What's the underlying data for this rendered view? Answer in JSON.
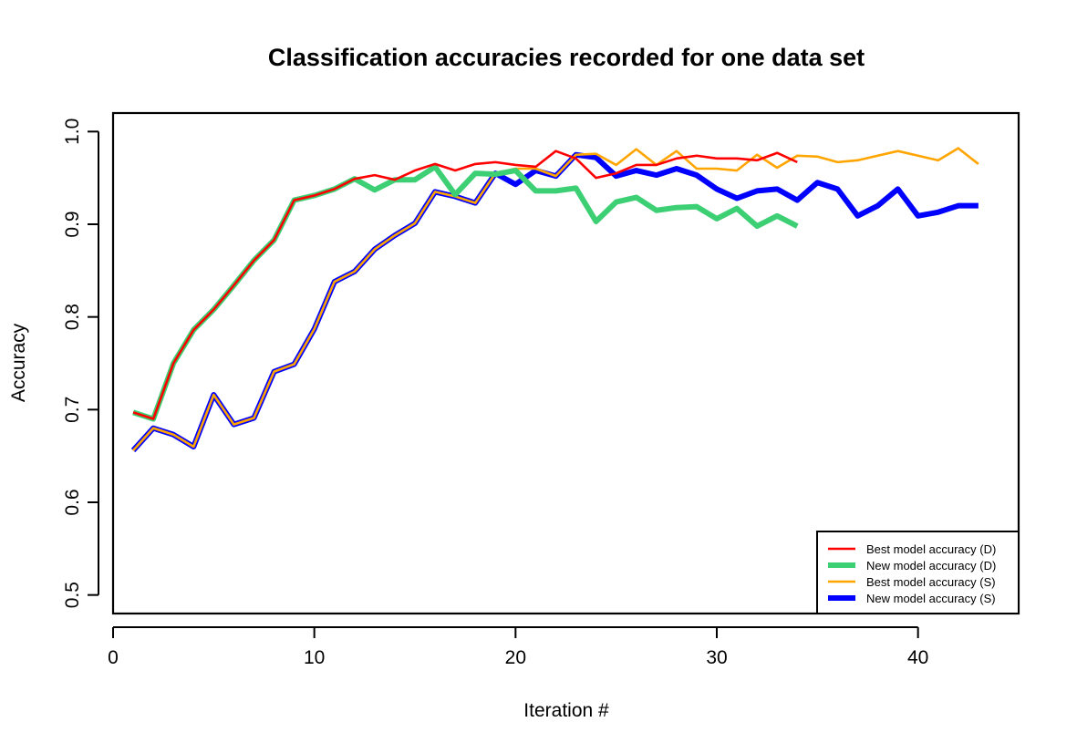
{
  "chart_data": {
    "type": "line",
    "title": "Classification accuracies recorded for one data set",
    "xlabel": "Iteration #",
    "ylabel": "Accuracy",
    "xlim": [
      0,
      45
    ],
    "ylim": [
      0.48,
      1.02
    ],
    "x_ticks": [
      0,
      10,
      20,
      30,
      40
    ],
    "y_ticks": [
      0.5,
      0.6,
      0.7,
      0.8,
      0.9,
      1.0
    ],
    "x_tick_labels": [
      "0",
      "10",
      "20",
      "30",
      "40"
    ],
    "y_tick_labels": [
      "0.5",
      "0.6",
      "0.7",
      "0.8",
      "0.9",
      "1.0"
    ],
    "grid": false,
    "legend_position": "bottom-right",
    "series": [
      {
        "name": "Best model accuracy (D)",
        "color": "#ff0000",
        "x": [
          1,
          2,
          3,
          4,
          5,
          6,
          7,
          8,
          9,
          10,
          11,
          12,
          13,
          14,
          15,
          16,
          17,
          18,
          19,
          20,
          21,
          22,
          23,
          24,
          25,
          26,
          27,
          28,
          29,
          30,
          31,
          32,
          33,
          34
        ],
        "values": [
          0.697,
          0.69,
          0.75,
          0.786,
          0.808,
          0.834,
          0.861,
          0.883,
          0.926,
          0.931,
          0.938,
          0.949,
          0.953,
          0.948,
          0.958,
          0.965,
          0.958,
          0.965,
          0.967,
          0.964,
          0.962,
          0.979,
          0.971,
          0.95,
          0.955,
          0.964,
          0.964,
          0.971,
          0.974,
          0.971,
          0.971,
          0.969,
          0.977,
          0.967
        ]
      },
      {
        "name": "New model accuracy (D)",
        "color": "#3ccf74",
        "x": [
          1,
          2,
          3,
          4,
          5,
          6,
          7,
          8,
          9,
          10,
          11,
          12,
          13,
          14,
          15,
          16,
          17,
          18,
          19,
          20,
          21,
          22,
          23,
          24,
          25,
          26,
          27,
          28,
          29,
          30,
          31,
          32,
          33,
          34
        ],
        "values": [
          0.697,
          0.69,
          0.75,
          0.786,
          0.808,
          0.834,
          0.861,
          0.883,
          0.926,
          0.931,
          0.938,
          0.949,
          0.937,
          0.948,
          0.948,
          0.962,
          0.932,
          0.955,
          0.954,
          0.958,
          0.936,
          0.936,
          0.939,
          0.903,
          0.924,
          0.929,
          0.915,
          0.918,
          0.919,
          0.906,
          0.917,
          0.898,
          0.909,
          0.898
        ]
      },
      {
        "name": "Best model accuracy (S)",
        "color": "#ffa500",
        "x": [
          1,
          2,
          3,
          4,
          5,
          6,
          7,
          8,
          9,
          10,
          11,
          12,
          13,
          14,
          15,
          16,
          17,
          18,
          19,
          20,
          21,
          22,
          23,
          24,
          25,
          26,
          27,
          28,
          29,
          30,
          31,
          32,
          33,
          34,
          35,
          36,
          37,
          38,
          39,
          40,
          41,
          42,
          43
        ],
        "values": [
          0.656,
          0.68,
          0.673,
          0.66,
          0.716,
          0.684,
          0.691,
          0.741,
          0.749,
          0.787,
          0.838,
          0.849,
          0.873,
          0.888,
          0.901,
          0.935,
          0.93,
          0.923,
          0.955,
          0.96,
          0.96,
          0.952,
          0.975,
          0.976,
          0.964,
          0.981,
          0.964,
          0.979,
          0.96,
          0.96,
          0.958,
          0.975,
          0.961,
          0.974,
          0.973,
          0.967,
          0.969,
          0.974,
          0.979,
          0.974,
          0.969,
          0.982,
          0.965
        ]
      },
      {
        "name": "New model accuracy (S)",
        "color": "#0000ff",
        "x": [
          1,
          2,
          3,
          4,
          5,
          6,
          7,
          8,
          9,
          10,
          11,
          12,
          13,
          14,
          15,
          16,
          17,
          18,
          19,
          20,
          21,
          22,
          23,
          24,
          25,
          26,
          27,
          28,
          29,
          30,
          31,
          32,
          33,
          34,
          35,
          36,
          37,
          38,
          39,
          40,
          41,
          42,
          43
        ],
        "values": [
          0.656,
          0.68,
          0.673,
          0.66,
          0.716,
          0.684,
          0.691,
          0.741,
          0.749,
          0.787,
          0.838,
          0.849,
          0.873,
          0.888,
          0.901,
          0.935,
          0.93,
          0.923,
          0.955,
          0.943,
          0.958,
          0.952,
          0.975,
          0.972,
          0.952,
          0.958,
          0.953,
          0.96,
          0.953,
          0.938,
          0.928,
          0.936,
          0.938,
          0.926,
          0.945,
          0.938,
          0.909,
          0.92,
          0.938,
          0.909,
          0.913,
          0.92,
          0.92
        ]
      }
    ]
  }
}
